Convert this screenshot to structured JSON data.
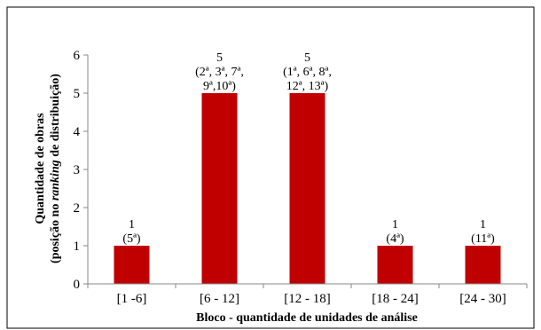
{
  "chart_data": {
    "type": "bar",
    "categories": [
      "[1 -6]",
      "[6 - 12]",
      "[12 - 18]",
      "[18 - 24]",
      "[24 - 30]"
    ],
    "values": [
      1,
      5,
      5,
      1,
      1
    ],
    "data_labels": [
      [
        "1",
        "(5ª)"
      ],
      [
        "5",
        "(2ª, 3ª, 7ª,",
        "9ª,10ª)"
      ],
      [
        "5",
        "(1ª, 6ª, 8ª,",
        "12ª, 13ª)"
      ],
      [
        "1",
        "(4ª)"
      ],
      [
        "1",
        "(11ª)"
      ]
    ],
    "xlabel": "Bloco - quantidade de unidades de análise",
    "ylabel": {
      "line1": "Quantidade de obras",
      "line2_before": "(posição no ",
      "line2_italic": "ranking",
      "line2_after": " de distribuição)"
    },
    "ylim": [
      0,
      6
    ],
    "yticks": [
      0,
      1,
      2,
      3,
      4,
      5,
      6
    ],
    "grid": false,
    "legend": "none",
    "bar_color": "#c00000"
  }
}
